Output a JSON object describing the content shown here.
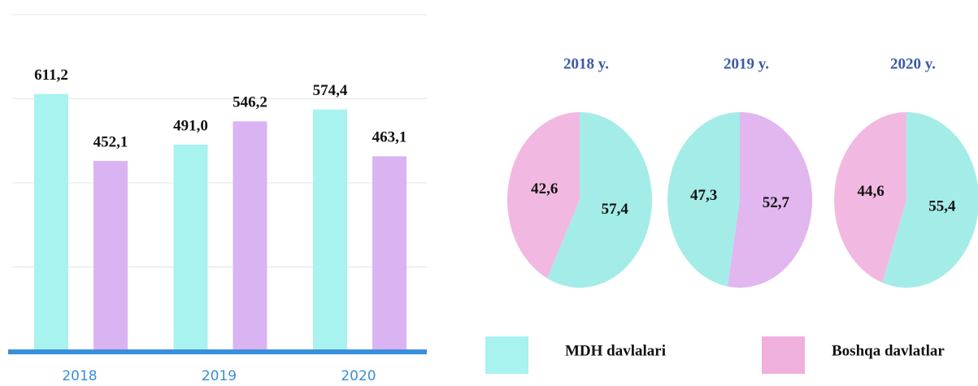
{
  "chart_data": [
    {
      "type": "bar",
      "categories": [
        "2018",
        "2019",
        "2020"
      ],
      "series": [
        {
          "name": "MDH davlalari",
          "color": "#a8f2ef",
          "values": [
            611.2,
            491.0,
            574.4
          ],
          "value_labels": [
            "611,2",
            "491,0",
            "574,4"
          ]
        },
        {
          "name": "Boshqa davlatlar",
          "color": "#dab3f3",
          "values": [
            452.1,
            546.2,
            463.1
          ],
          "value_labels": [
            "452,1",
            "546,2",
            "463,1"
          ]
        }
      ],
      "ylim": [
        0,
        800
      ],
      "yticks": [
        0,
        200,
        400,
        600,
        800
      ],
      "grid": true,
      "legend_colors": [
        "#a8f2ef",
        "#f0b0de"
      ]
    },
    {
      "type": "pie",
      "title": "2018 y.",
      "values": [
        57.4,
        42.6
      ],
      "value_labels": [
        "57,4",
        "42,6"
      ],
      "colors": [
        "#a4ece8",
        "#f1b9e2"
      ]
    },
    {
      "type": "pie",
      "title": "2019 y.",
      "values": [
        52.7,
        47.3
      ],
      "value_labels": [
        "52,7",
        "47,3"
      ],
      "colors": [
        "#e2b6ee",
        "#a4ece8"
      ]
    },
    {
      "type": "pie",
      "title": "2020 y.",
      "values": [
        55.4,
        44.6
      ],
      "value_labels": [
        "55,4",
        "44,6"
      ],
      "colors": [
        "#a4ece8",
        "#f1b9e2"
      ]
    }
  ]
}
